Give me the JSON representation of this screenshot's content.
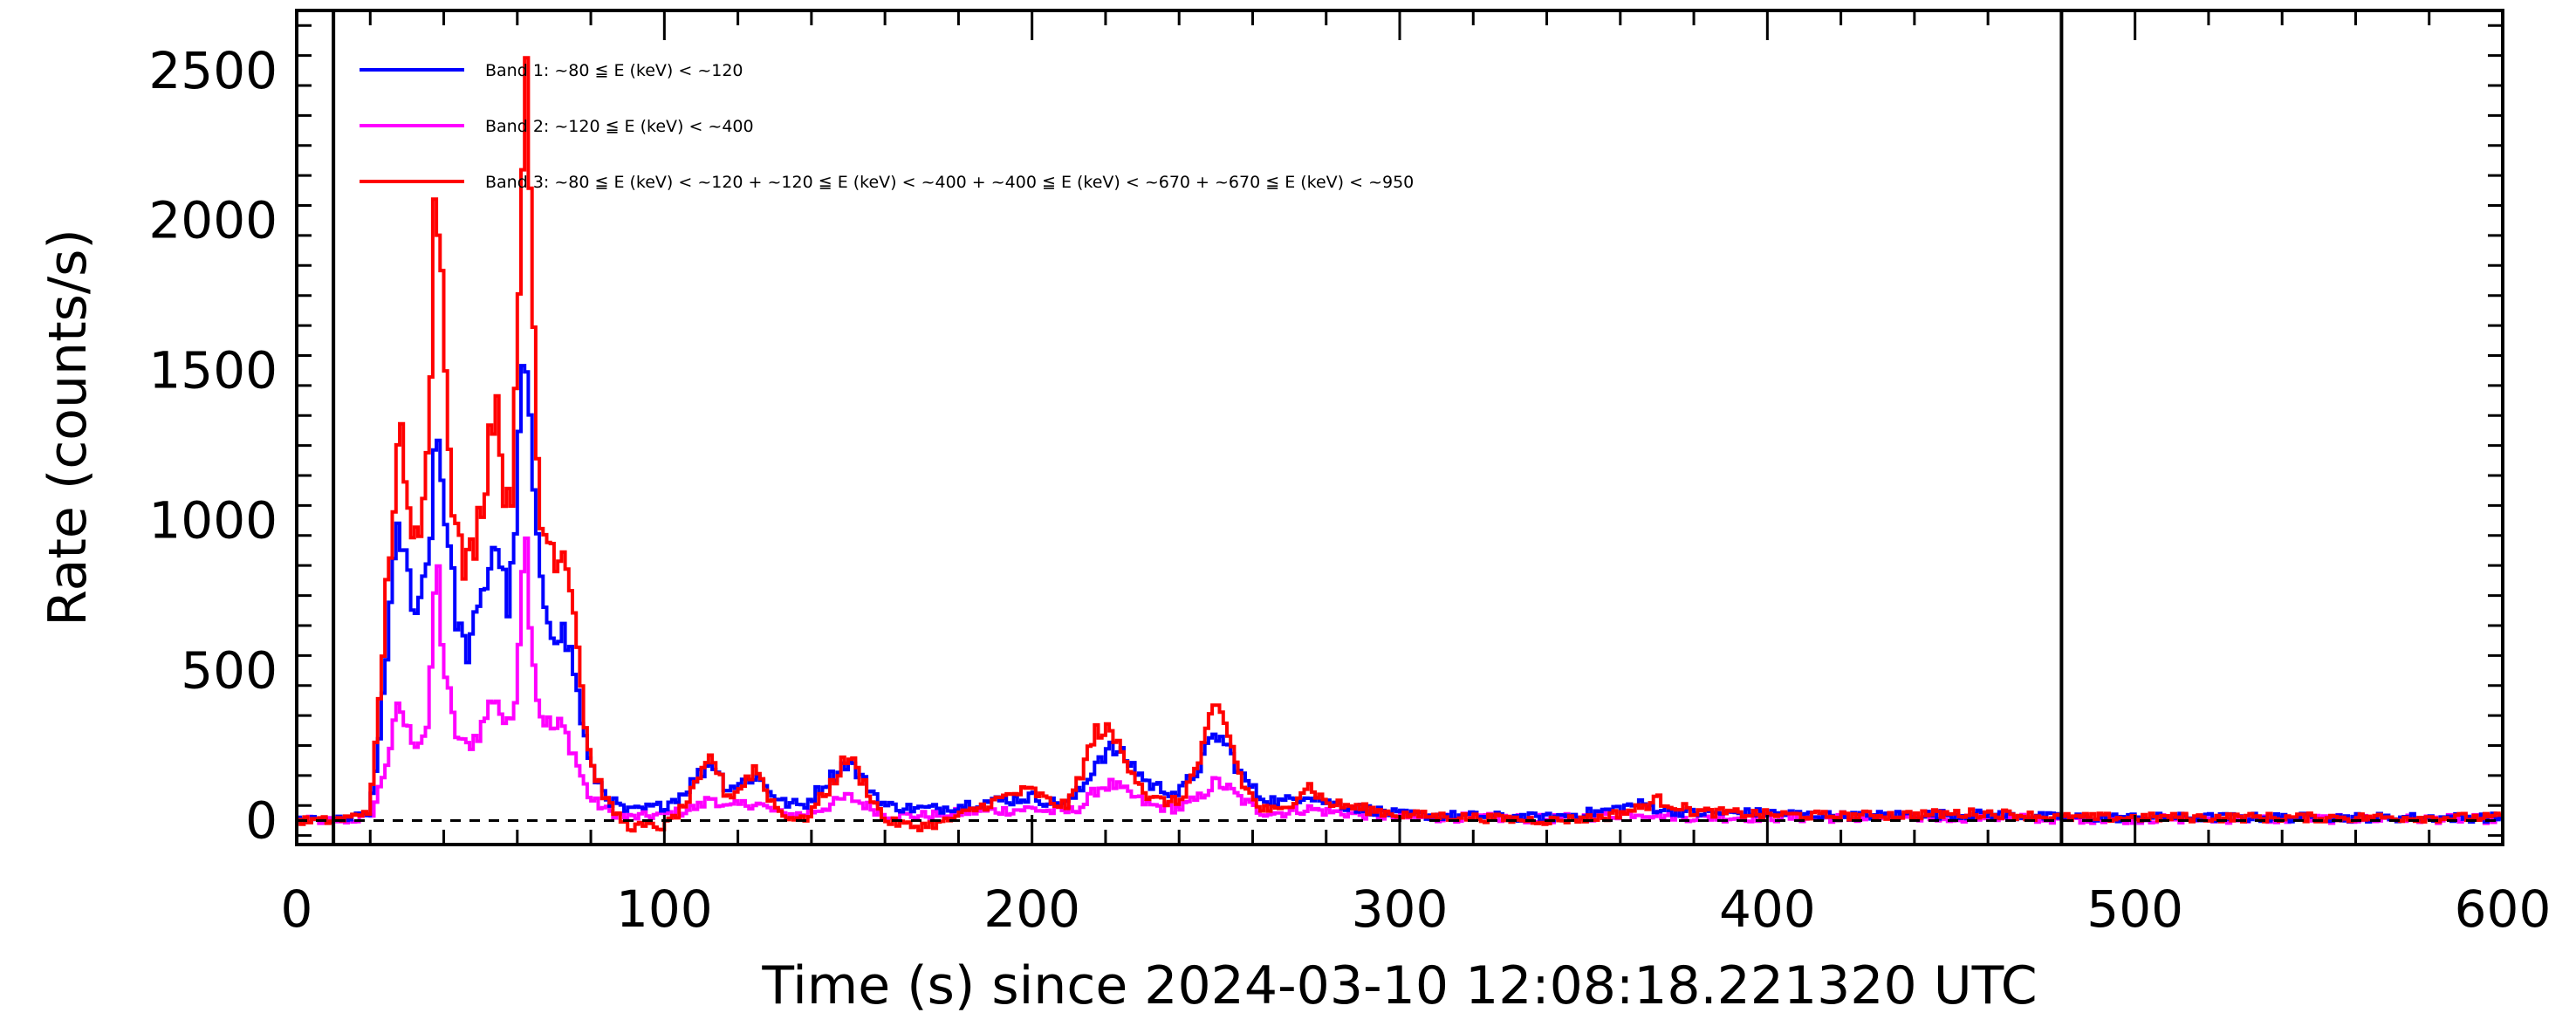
{
  "chart_data": {
    "type": "line",
    "title": "",
    "xlabel": "Time (s) since 2024-03-10 12:08:18.221320 UTC",
    "ylabel": "Rate (counts/s)",
    "xlim": [
      0,
      600
    ],
    "ylim": [
      -80,
      2700
    ],
    "x_ticks": [
      0,
      100,
      200,
      300,
      400,
      500,
      600
    ],
    "y_ticks": [
      0,
      500,
      1000,
      1500,
      2000,
      2500
    ],
    "grid": false,
    "legend_position": "top-left",
    "vertical_markers": [
      10,
      480
    ],
    "baseline": 0,
    "colors": {
      "band1": "#0000ff",
      "band2": "#ff00ff",
      "band3": "#ff0000",
      "axes": "#000000"
    },
    "series": [
      {
        "name": "Band 1: ~80 ≦ E (keV) < ~120",
        "color": "#0000ff",
        "x": [
          0,
          10,
          15,
          20,
          22,
          25,
          28,
          30,
          33,
          36,
          38,
          40,
          43,
          46,
          50,
          54,
          56,
          58,
          60,
          62,
          64,
          66,
          70,
          72,
          75,
          78,
          80,
          85,
          90,
          100,
          105,
          110,
          113,
          117,
          120,
          125,
          128,
          132,
          138,
          145,
          150,
          155,
          160,
          168,
          175,
          185,
          195,
          200,
          205,
          210,
          214,
          218,
          222,
          226,
          232,
          240,
          245,
          250,
          253,
          257,
          262,
          268,
          275,
          280,
          290,
          300,
          320,
          340,
          355,
          365,
          370,
          380,
          400,
          420,
          440,
          460,
          480,
          500,
          520,
          550,
          580,
          600
        ],
        "y": [
          0,
          0,
          5,
          30,
          200,
          650,
          980,
          820,
          700,
          900,
          1340,
          1100,
          720,
          550,
          700,
          960,
          820,
          700,
          1100,
          1580,
          1200,
          780,
          640,
          640,
          540,
          300,
          170,
          70,
          30,
          50,
          90,
          160,
          200,
          110,
          120,
          150,
          110,
          60,
          50,
          140,
          200,
          120,
          50,
          40,
          40,
          60,
          70,
          80,
          60,
          60,
          110,
          210,
          240,
          200,
          120,
          90,
          170,
          290,
          250,
          150,
          80,
          60,
          90,
          60,
          40,
          20,
          15,
          10,
          30,
          55,
          40,
          25,
          25,
          15,
          20,
          20,
          10,
          10,
          10,
          10,
          10,
          10
        ]
      },
      {
        "name": "Band 2: ~120 ≦ E (keV) < ~400",
        "color": "#ff00ff",
        "x": [
          0,
          10,
          15,
          20,
          22,
          25,
          28,
          30,
          33,
          36,
          38,
          40,
          43,
          46,
          50,
          54,
          56,
          58,
          60,
          62,
          64,
          66,
          70,
          72,
          75,
          78,
          80,
          85,
          90,
          100,
          105,
          110,
          113,
          117,
          120,
          125,
          128,
          132,
          138,
          145,
          150,
          155,
          160,
          168,
          175,
          185,
          195,
          200,
          205,
          210,
          214,
          218,
          222,
          226,
          232,
          240,
          245,
          250,
          253,
          257,
          262,
          268,
          275,
          280,
          290,
          300,
          320,
          340,
          355,
          365,
          370,
          380,
          400,
          420,
          440,
          460,
          480,
          500,
          520,
          550,
          580,
          600
        ],
        "y": [
          0,
          0,
          2,
          10,
          80,
          220,
          390,
          300,
          260,
          320,
          910,
          520,
          300,
          240,
          300,
          430,
          340,
          300,
          480,
          1020,
          600,
          360,
          300,
          320,
          240,
          130,
          70,
          30,
          10,
          20,
          30,
          50,
          80,
          40,
          50,
          60,
          40,
          20,
          20,
          50,
          80,
          50,
          20,
          15,
          20,
          30,
          35,
          40,
          30,
          30,
          50,
          110,
          120,
          90,
          50,
          40,
          70,
          130,
          110,
          70,
          30,
          25,
          40,
          30,
          20,
          10,
          10,
          5,
          15,
          25,
          20,
          10,
          10,
          8,
          10,
          10,
          5,
          5,
          5,
          5,
          5,
          5
        ]
      },
      {
        "name": "Band 3: ~80 ≦ E (keV) < ~120 + ~120 ≦ E (keV) < ~400 + ~400 ≦ E (keV) < ~670 + ~670 ≦ E (keV) < ~950",
        "color": "#ff0000",
        "x": [
          0,
          10,
          15,
          20,
          22,
          25,
          28,
          30,
          33,
          36,
          38,
          40,
          43,
          46,
          50,
          54,
          56,
          58,
          60,
          62,
          64,
          66,
          70,
          72,
          75,
          78,
          80,
          85,
          90,
          100,
          105,
          110,
          113,
          117,
          120,
          125,
          128,
          132,
          138,
          145,
          150,
          155,
          160,
          168,
          175,
          185,
          195,
          200,
          205,
          210,
          214,
          218,
          222,
          226,
          232,
          240,
          245,
          250,
          253,
          257,
          262,
          268,
          275,
          280,
          290,
          300,
          320,
          340,
          355,
          365,
          370,
          380,
          400,
          420,
          440,
          460,
          480,
          500,
          520,
          550,
          580,
          600
        ],
        "y": [
          0,
          0,
          10,
          40,
          300,
          850,
          1320,
          1000,
          920,
          1400,
          2180,
          1700,
          980,
          820,
          1020,
          1450,
          1180,
          980,
          1600,
          2580,
          1800,
          1000,
          900,
          920,
          800,
          380,
          190,
          50,
          -20,
          -20,
          40,
          140,
          220,
          80,
          100,
          180,
          90,
          20,
          0,
          110,
          220,
          110,
          0,
          -20,
          -10,
          40,
          90,
          100,
          60,
          50,
          180,
          310,
          280,
          200,
          70,
          60,
          180,
          380,
          310,
          130,
          40,
          30,
          120,
          60,
          40,
          20,
          10,
          0,
          10,
          40,
          70,
          30,
          20,
          15,
          20,
          25,
          10,
          10,
          10,
          10,
          10,
          10
        ]
      }
    ]
  }
}
